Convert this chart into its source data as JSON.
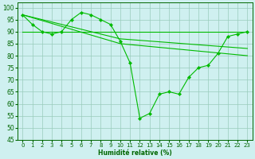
{
  "title": "",
  "xlabel": "Humidité relative (%)",
  "ylabel": "",
  "background_color": "#cff0f0",
  "grid_color": "#99ccbb",
  "line_color": "#00bb00",
  "xlim": [
    -0.5,
    23.5
  ],
  "ylim": [
    45,
    102
  ],
  "yticks": [
    45,
    50,
    55,
    60,
    65,
    70,
    75,
    80,
    85,
    90,
    95,
    100
  ],
  "xticks": [
    0,
    1,
    2,
    3,
    4,
    5,
    6,
    7,
    8,
    9,
    10,
    11,
    12,
    13,
    14,
    15,
    16,
    17,
    18,
    19,
    20,
    21,
    22,
    23
  ],
  "series_main": {
    "x": [
      0,
      1,
      2,
      3,
      4,
      5,
      6,
      7,
      8,
      9,
      10,
      11,
      12,
      13,
      14,
      15,
      16,
      17,
      18,
      19,
      20,
      21,
      22,
      23
    ],
    "y": [
      97,
      93,
      90,
      89,
      90,
      95,
      98,
      97,
      95,
      93,
      86,
      77,
      54,
      56,
      64,
      65,
      64,
      71,
      75,
      76,
      81,
      88,
      89,
      90
    ]
  },
  "line_flat": {
    "x": [
      0,
      23
    ],
    "y": [
      90,
      90
    ]
  },
  "line_mid": {
    "x": [
      0,
      10,
      23
    ],
    "y": [
      97,
      87,
      83
    ]
  },
  "line_low": {
    "x": [
      0,
      10,
      23
    ],
    "y": [
      97,
      85,
      80
    ]
  }
}
